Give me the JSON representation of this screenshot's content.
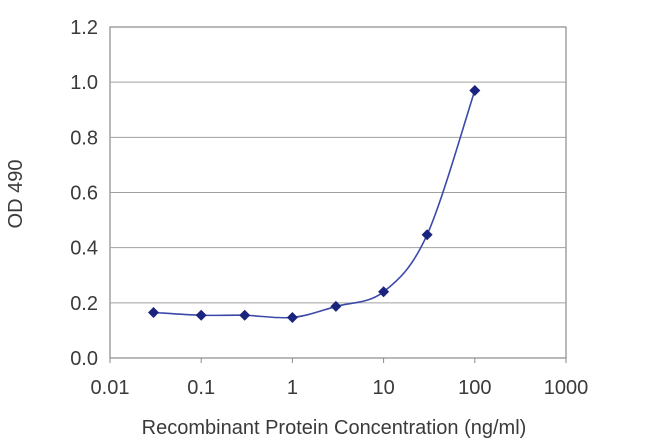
{
  "chart_data": {
    "type": "line",
    "xlabel": "Recombinant Protein Concentration (ng/ml)",
    "ylabel": "OD 490",
    "x_scale": "log",
    "xlim": [
      0.01,
      1000
    ],
    "ylim": [
      0,
      1.2
    ],
    "x_ticks": [
      "0.01",
      "0.1",
      "1",
      "10",
      "100",
      "1000"
    ],
    "y_ticks": [
      "0.0",
      "0.2",
      "0.4",
      "0.6",
      "0.8",
      "1.0",
      "1.2"
    ],
    "grid": "horizontal",
    "series": [
      {
        "x": [
          0.03,
          0.1,
          0.3,
          1,
          3,
          10,
          30,
          100
        ],
        "y": [
          0.165,
          0.155,
          0.155,
          0.147,
          0.187,
          0.24,
          0.447,
          0.97
        ]
      }
    ],
    "colors": {
      "line": "#3b4aa8",
      "marker": "#1a237e",
      "grid": "#a0a0a0",
      "axis": "#8a8a8a"
    }
  }
}
